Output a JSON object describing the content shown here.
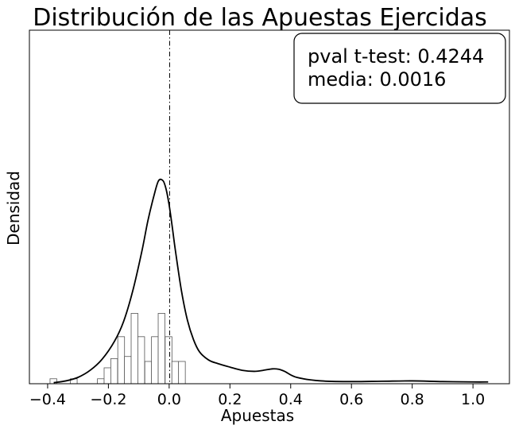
{
  "chart_data": {
    "type": "histogram",
    "title": "Distribución de las Apuestas Ejercidas",
    "xlabel": "Apuestas",
    "ylabel": "Densidad",
    "xlim": [
      -0.46,
      1.12
    ],
    "ylim": [
      0,
      1.0
    ],
    "y_ticks_shown": false,
    "grid": false,
    "x_ticks": [
      -0.4,
      -0.2,
      0.0,
      0.2,
      0.4,
      0.6,
      0.8,
      1.0
    ],
    "x_tick_labels": [
      "−0.4",
      "−0.2",
      "0.0",
      "0.2",
      "0.4",
      "0.6",
      "0.8",
      "1.0"
    ],
    "bin_width": 0.02225,
    "bins": [
      {
        "x": -0.381,
        "density": 0.014
      },
      {
        "x": -0.314,
        "density": 0.014
      },
      {
        "x": -0.225,
        "density": 0.014
      },
      {
        "x": -0.203,
        "density": 0.045
      },
      {
        "x": -0.181,
        "density": 0.071
      },
      {
        "x": -0.158,
        "density": 0.133
      },
      {
        "x": -0.136,
        "density": 0.077
      },
      {
        "x": -0.114,
        "density": 0.199
      },
      {
        "x": -0.092,
        "density": 0.133
      },
      {
        "x": -0.069,
        "density": 0.063
      },
      {
        "x": -0.047,
        "density": 0.133
      },
      {
        "x": -0.025,
        "density": 0.199
      },
      {
        "x": -0.002,
        "density": 0.133
      },
      {
        "x": 0.02,
        "density": 0.063
      },
      {
        "x": 0.042,
        "density": 0.063
      }
    ],
    "kde": {
      "x": [
        -0.38,
        -0.34,
        -0.3,
        -0.26,
        -0.22,
        -0.18,
        -0.15,
        -0.12,
        -0.09,
        -0.07,
        -0.05,
        -0.035,
        -0.02,
        -0.01,
        0.0,
        0.01,
        0.02,
        0.04,
        0.06,
        0.08,
        0.1,
        0.13,
        0.16,
        0.2,
        0.24,
        0.28,
        0.31,
        0.34,
        0.36,
        0.38,
        0.42,
        0.5,
        0.6,
        0.7,
        0.8,
        0.9,
        1.0,
        1.05
      ],
      "y": [
        0.003,
        0.008,
        0.018,
        0.038,
        0.07,
        0.12,
        0.176,
        0.262,
        0.374,
        0.461,
        0.532,
        0.574,
        0.574,
        0.55,
        0.505,
        0.445,
        0.38,
        0.265,
        0.18,
        0.125,
        0.09,
        0.067,
        0.057,
        0.047,
        0.038,
        0.035,
        0.038,
        0.042,
        0.041,
        0.035,
        0.018,
        0.008,
        0.006,
        0.007,
        0.008,
        0.006,
        0.005,
        0.005
      ]
    },
    "vline_x": 0.0016,
    "annotation": {
      "lines": [
        "pval t-test: 0.4244",
        "media: 0.0016"
      ],
      "placement": "top-right"
    }
  }
}
